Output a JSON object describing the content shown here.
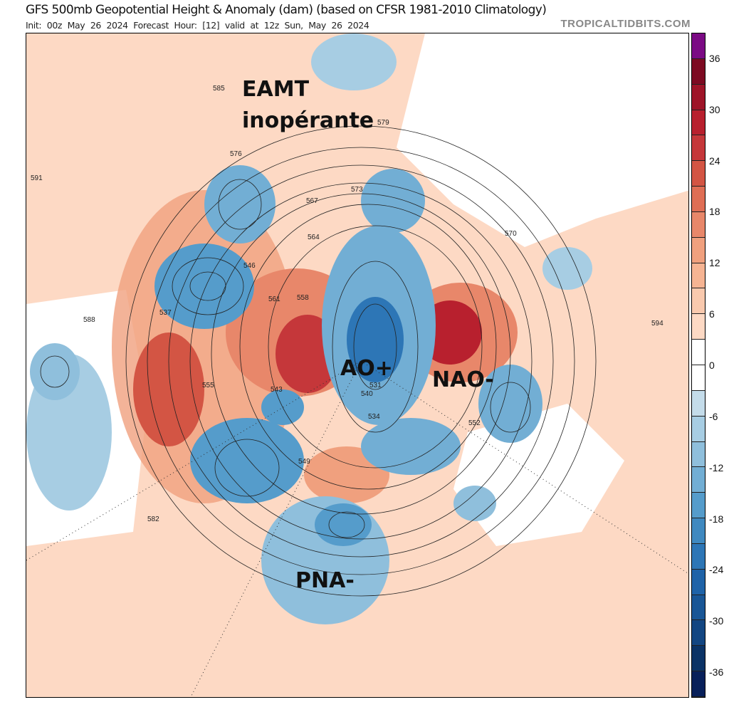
{
  "header": {
    "title": "GFS 500mb Geopotential Height & Anomaly (dam) (based on CFSR 1981-2010 Climatology)",
    "subtitle": "Init: 00z May 26 2024   Forecast Hour: [12]   valid at 12z Sun, May 26 2024",
    "brand": "TROPICALTIDBITS.COM"
  },
  "annotations": {
    "eamt_line1": "EAMT",
    "eamt_line2": "inopérante",
    "ao": "AO+",
    "nao": "NAO-",
    "pna": "PNA-"
  },
  "colorbar": {
    "ticks": [
      "36",
      "30",
      "24",
      "18",
      "12",
      "6",
      "0",
      "-6",
      "-12",
      "-18",
      "-24",
      "-30",
      "-36"
    ],
    "colors": [
      "#7b0a84",
      "#7d0a22",
      "#9e1428",
      "#b8202e",
      "#c5373a",
      "#d35544",
      "#df6e55",
      "#e8876a",
      "#f0a07e",
      "#f6b493",
      "#f9c9ae",
      "#fdd9c4",
      "#ffffff",
      "#ffffff",
      "#c4dcea",
      "#a7cde3",
      "#8fbfdc",
      "#72aed4",
      "#559ccb",
      "#3f89c0",
      "#2d76b6",
      "#1f63a8",
      "#195696",
      "#134682",
      "#0b3366",
      "#08205a"
    ]
  },
  "contour_labels": [
    "591",
    "588",
    "585",
    "582",
    "579",
    "576",
    "573",
    "570",
    "567",
    "564",
    "561",
    "558",
    "555",
    "552",
    "549",
    "546",
    "543",
    "540",
    "537",
    "534",
    "531",
    "594"
  ]
}
